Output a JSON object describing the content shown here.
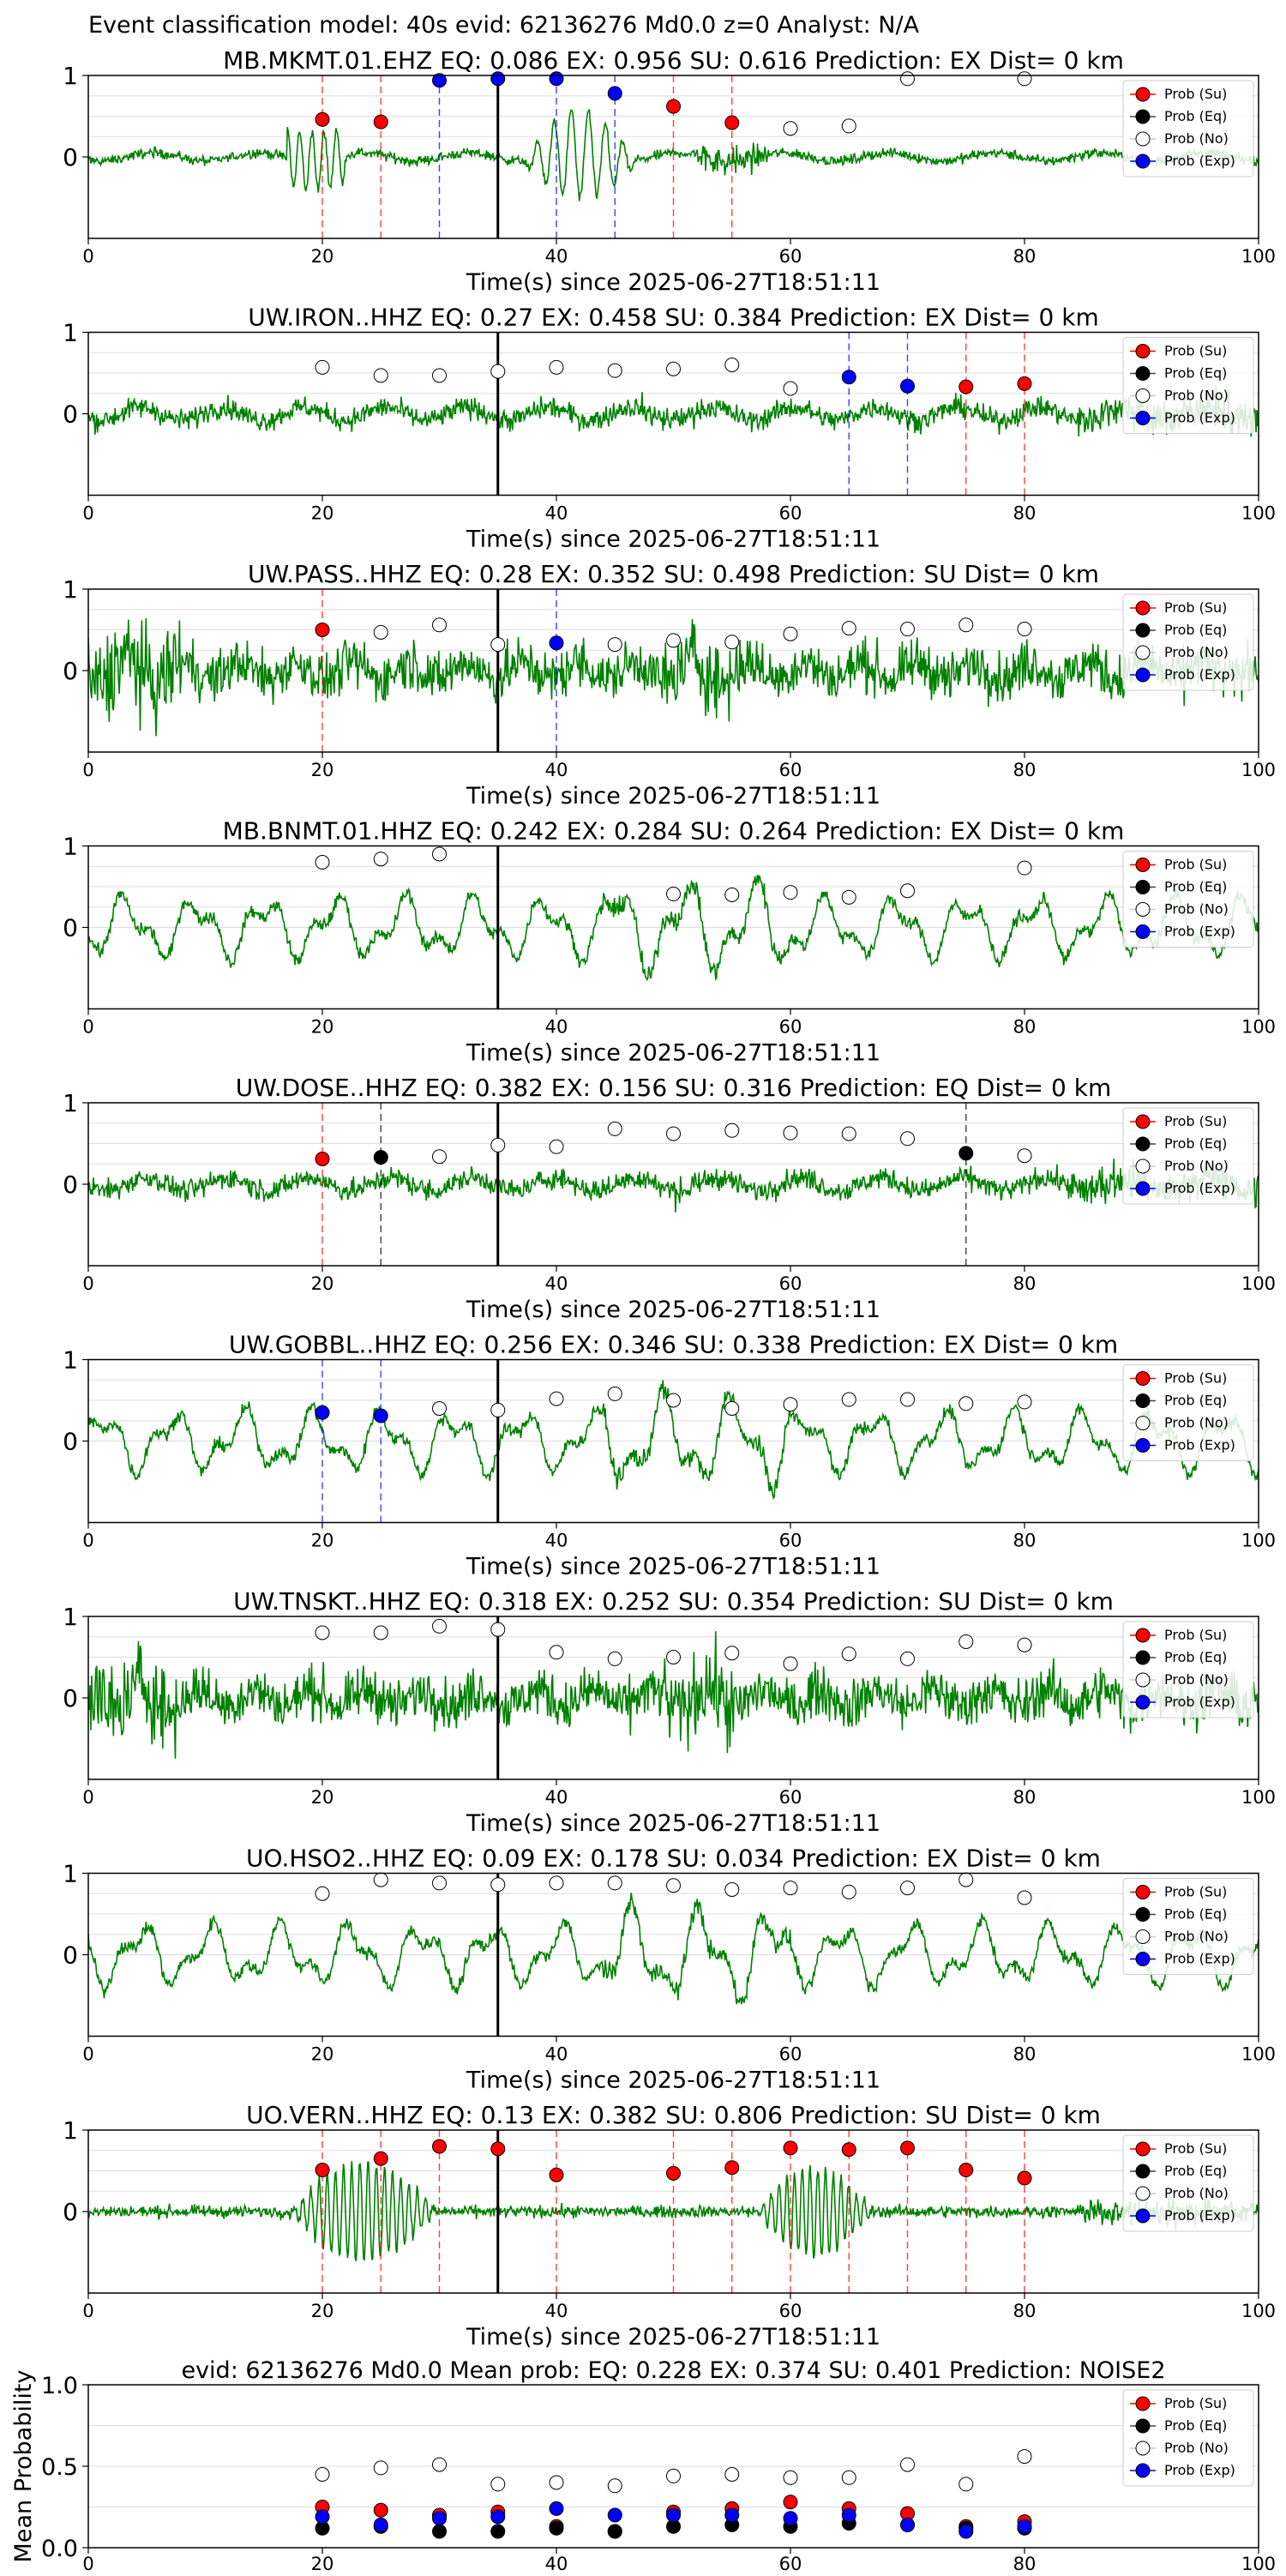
{
  "figure_title": "Event classification model: 40s evid: 62136276 Md0.0 z=0 Analyst: N/A",
  "colors": {
    "trace": "#008000",
    "su": "#ff0000",
    "eq": "#000000",
    "no": "#ffffff",
    "exp": "#0000ff",
    "grid": "#dddddd",
    "pick": "#000000"
  },
  "legend_labels": [
    "Prob (Su)",
    "Prob (Eq)",
    "Prob (No)",
    "Prob (Exp)"
  ],
  "chart_data": [
    {
      "type": "scatter",
      "title": "MB.MKMT.01.EHZ   EQ: 0.086  EX: 0.956  SU: 0.616   Prediction: EX    Dist= 0 km",
      "xlabel": "Time(s) since 2025-06-27T18:51:11",
      "ylabel": "",
      "xlim": [
        0,
        100
      ],
      "ylim": [
        -1,
        1
      ],
      "xticks": [
        "0",
        "20",
        "40",
        "60",
        "80",
        "100"
      ],
      "yticks": [
        "0",
        "1"
      ],
      "pick_time": 35,
      "trace_style": "spiky",
      "points": [
        {
          "x": 20,
          "y": 0.46,
          "cls": "su"
        },
        {
          "x": 25,
          "y": 0.43,
          "cls": "su"
        },
        {
          "x": 30,
          "y": 0.94,
          "cls": "exp"
        },
        {
          "x": 35,
          "y": 0.96,
          "cls": "exp"
        },
        {
          "x": 40,
          "y": 0.96,
          "cls": "exp"
        },
        {
          "x": 45,
          "y": 0.78,
          "cls": "exp"
        },
        {
          "x": 50,
          "y": 0.62,
          "cls": "su"
        },
        {
          "x": 55,
          "y": 0.42,
          "cls": "su"
        },
        {
          "x": 60,
          "y": 0.35,
          "cls": "no"
        },
        {
          "x": 65,
          "y": 0.38,
          "cls": "no"
        },
        {
          "x": 70,
          "y": 0.96,
          "cls": "no"
        },
        {
          "x": 80,
          "y": 0.96,
          "cls": "no"
        }
      ]
    },
    {
      "type": "scatter",
      "title": "UW.IRON..HHZ   EQ: 0.27  EX: 0.458  SU: 0.384   Prediction: EX    Dist= 0 km",
      "xlabel": "Time(s) since 2025-06-27T18:51:11",
      "ylabel": "",
      "xlim": [
        0,
        100
      ],
      "ylim": [
        -1,
        1
      ],
      "xticks": [
        "0",
        "20",
        "40",
        "60",
        "80",
        "100"
      ],
      "yticks": [
        "0",
        "1"
      ],
      "pick_time": 35,
      "trace_style": "noise",
      "points": [
        {
          "x": 20,
          "y": 0.57,
          "cls": "no"
        },
        {
          "x": 25,
          "y": 0.47,
          "cls": "no"
        },
        {
          "x": 30,
          "y": 0.47,
          "cls": "no"
        },
        {
          "x": 35,
          "y": 0.52,
          "cls": "no"
        },
        {
          "x": 40,
          "y": 0.57,
          "cls": "no"
        },
        {
          "x": 45,
          "y": 0.53,
          "cls": "no"
        },
        {
          "x": 50,
          "y": 0.55,
          "cls": "no"
        },
        {
          "x": 55,
          "y": 0.6,
          "cls": "no"
        },
        {
          "x": 60,
          "y": 0.31,
          "cls": "no"
        },
        {
          "x": 65,
          "y": 0.45,
          "cls": "exp"
        },
        {
          "x": 70,
          "y": 0.34,
          "cls": "exp"
        },
        {
          "x": 75,
          "y": 0.33,
          "cls": "su"
        },
        {
          "x": 80,
          "y": 0.37,
          "cls": "su"
        }
      ]
    },
    {
      "type": "scatter",
      "title": "UW.PASS..HHZ   EQ: 0.28  EX: 0.352  SU: 0.498   Prediction: SU    Dist= 0 km",
      "xlabel": "Time(s) since 2025-06-27T18:51:11",
      "ylabel": "",
      "xlim": [
        0,
        100
      ],
      "ylim": [
        -1,
        1
      ],
      "xticks": [
        "0",
        "20",
        "40",
        "60",
        "80",
        "100"
      ],
      "yticks": [
        "0",
        "1"
      ],
      "pick_time": 35,
      "trace_style": "loud",
      "points": [
        {
          "x": 20,
          "y": 0.5,
          "cls": "su"
        },
        {
          "x": 25,
          "y": 0.47,
          "cls": "no"
        },
        {
          "x": 30,
          "y": 0.56,
          "cls": "no"
        },
        {
          "x": 35,
          "y": 0.32,
          "cls": "no"
        },
        {
          "x": 40,
          "y": 0.34,
          "cls": "exp"
        },
        {
          "x": 45,
          "y": 0.32,
          "cls": "no"
        },
        {
          "x": 50,
          "y": 0.37,
          "cls": "no"
        },
        {
          "x": 55,
          "y": 0.35,
          "cls": "no"
        },
        {
          "x": 60,
          "y": 0.45,
          "cls": "no"
        },
        {
          "x": 65,
          "y": 0.52,
          "cls": "no"
        },
        {
          "x": 70,
          "y": 0.51,
          "cls": "no"
        },
        {
          "x": 75,
          "y": 0.56,
          "cls": "no"
        },
        {
          "x": 80,
          "y": 0.51,
          "cls": "no"
        }
      ]
    },
    {
      "type": "scatter",
      "title": "MB.BNMT.01.HHZ   EQ: 0.242  EX: 0.284  SU: 0.264   Prediction: EX    Dist= 0 km",
      "xlabel": "Time(s) since 2025-06-27T18:51:11",
      "ylabel": "",
      "xlim": [
        0,
        100
      ],
      "ylim": [
        -1,
        1
      ],
      "xticks": [
        "0",
        "20",
        "40",
        "60",
        "80",
        "100"
      ],
      "yticks": [
        "0",
        "1"
      ],
      "pick_time": 35,
      "trace_style": "wavy",
      "points": [
        {
          "x": 20,
          "y": 0.8,
          "cls": "no"
        },
        {
          "x": 25,
          "y": 0.84,
          "cls": "no"
        },
        {
          "x": 30,
          "y": 0.9,
          "cls": "no"
        },
        {
          "x": 50,
          "y": 0.41,
          "cls": "no"
        },
        {
          "x": 55,
          "y": 0.4,
          "cls": "no"
        },
        {
          "x": 60,
          "y": 0.43,
          "cls": "no"
        },
        {
          "x": 65,
          "y": 0.37,
          "cls": "no"
        },
        {
          "x": 70,
          "y": 0.45,
          "cls": "no"
        },
        {
          "x": 80,
          "y": 0.73,
          "cls": "no"
        }
      ]
    },
    {
      "type": "scatter",
      "title": "UW.DOSE..HHZ   EQ: 0.382  EX: 0.156  SU: 0.316   Prediction: EQ    Dist= 0 km",
      "xlabel": "Time(s) since 2025-06-27T18:51:11",
      "ylabel": "",
      "xlim": [
        0,
        100
      ],
      "ylim": [
        -1,
        1
      ],
      "xticks": [
        "0",
        "20",
        "40",
        "60",
        "80",
        "100"
      ],
      "yticks": [
        "0",
        "1"
      ],
      "pick_time": 35,
      "trace_style": "noise",
      "points": [
        {
          "x": 20,
          "y": 0.31,
          "cls": "su"
        },
        {
          "x": 25,
          "y": 0.33,
          "cls": "eq"
        },
        {
          "x": 30,
          "y": 0.34,
          "cls": "no"
        },
        {
          "x": 35,
          "y": 0.48,
          "cls": "no"
        },
        {
          "x": 40,
          "y": 0.46,
          "cls": "no"
        },
        {
          "x": 45,
          "y": 0.68,
          "cls": "no"
        },
        {
          "x": 50,
          "y": 0.62,
          "cls": "no"
        },
        {
          "x": 55,
          "y": 0.66,
          "cls": "no"
        },
        {
          "x": 60,
          "y": 0.63,
          "cls": "no"
        },
        {
          "x": 65,
          "y": 0.62,
          "cls": "no"
        },
        {
          "x": 70,
          "y": 0.56,
          "cls": "no"
        },
        {
          "x": 75,
          "y": 0.38,
          "cls": "eq"
        },
        {
          "x": 80,
          "y": 0.35,
          "cls": "no"
        }
      ]
    },
    {
      "type": "scatter",
      "title": "UW.GOBBL..HHZ   EQ: 0.256  EX: 0.346  SU: 0.338   Prediction: EX    Dist= 0 km",
      "xlabel": "Time(s) since 2025-06-27T18:51:11",
      "ylabel": "",
      "xlim": [
        0,
        100
      ],
      "ylim": [
        -1,
        1
      ],
      "xticks": [
        "0",
        "20",
        "40",
        "60",
        "80",
        "100"
      ],
      "yticks": [
        "0",
        "1"
      ],
      "pick_time": 35,
      "trace_style": "wavy",
      "points": [
        {
          "x": 20,
          "y": 0.35,
          "cls": "exp"
        },
        {
          "x": 25,
          "y": 0.31,
          "cls": "exp"
        },
        {
          "x": 30,
          "y": 0.4,
          "cls": "no"
        },
        {
          "x": 35,
          "y": 0.38,
          "cls": "no"
        },
        {
          "x": 40,
          "y": 0.52,
          "cls": "no"
        },
        {
          "x": 45,
          "y": 0.58,
          "cls": "no"
        },
        {
          "x": 50,
          "y": 0.5,
          "cls": "no"
        },
        {
          "x": 55,
          "y": 0.4,
          "cls": "no"
        },
        {
          "x": 60,
          "y": 0.45,
          "cls": "no"
        },
        {
          "x": 65,
          "y": 0.51,
          "cls": "no"
        },
        {
          "x": 70,
          "y": 0.51,
          "cls": "no"
        },
        {
          "x": 75,
          "y": 0.46,
          "cls": "no"
        },
        {
          "x": 80,
          "y": 0.48,
          "cls": "no"
        }
      ]
    },
    {
      "type": "scatter",
      "title": "UW.TNSKT..HHZ   EQ: 0.318  EX: 0.252  SU: 0.354   Prediction: SU    Dist= 0 km",
      "xlabel": "Time(s) since 2025-06-27T18:51:11",
      "ylabel": "",
      "xlim": [
        0,
        100
      ],
      "ylim": [
        -1,
        1
      ],
      "xticks": [
        "0",
        "20",
        "40",
        "60",
        "80",
        "100"
      ],
      "yticks": [
        "0",
        "1"
      ],
      "pick_time": 35,
      "trace_style": "loud",
      "points": [
        {
          "x": 20,
          "y": 0.8,
          "cls": "no"
        },
        {
          "x": 25,
          "y": 0.8,
          "cls": "no"
        },
        {
          "x": 30,
          "y": 0.88,
          "cls": "no"
        },
        {
          "x": 35,
          "y": 0.84,
          "cls": "no"
        },
        {
          "x": 40,
          "y": 0.56,
          "cls": "no"
        },
        {
          "x": 45,
          "y": 0.48,
          "cls": "no"
        },
        {
          "x": 50,
          "y": 0.5,
          "cls": "no"
        },
        {
          "x": 55,
          "y": 0.55,
          "cls": "no"
        },
        {
          "x": 60,
          "y": 0.42,
          "cls": "no"
        },
        {
          "x": 65,
          "y": 0.54,
          "cls": "no"
        },
        {
          "x": 70,
          "y": 0.48,
          "cls": "no"
        },
        {
          "x": 75,
          "y": 0.69,
          "cls": "no"
        },
        {
          "x": 80,
          "y": 0.65,
          "cls": "no"
        }
      ]
    },
    {
      "type": "scatter",
      "title": "UO.HSO2..HHZ   EQ: 0.09  EX: 0.178  SU: 0.034   Prediction: EX    Dist= 0 km",
      "xlabel": "Time(s) since 2025-06-27T18:51:11",
      "ylabel": "",
      "xlim": [
        0,
        100
      ],
      "ylim": [
        -1,
        1
      ],
      "xticks": [
        "0",
        "20",
        "40",
        "60",
        "80",
        "100"
      ],
      "yticks": [
        "0",
        "1"
      ],
      "pick_time": 35,
      "trace_style": "wavy",
      "points": [
        {
          "x": 20,
          "y": 0.75,
          "cls": "no"
        },
        {
          "x": 25,
          "y": 0.92,
          "cls": "no"
        },
        {
          "x": 30,
          "y": 0.88,
          "cls": "no"
        },
        {
          "x": 35,
          "y": 0.86,
          "cls": "no"
        },
        {
          "x": 40,
          "y": 0.88,
          "cls": "no"
        },
        {
          "x": 45,
          "y": 0.88,
          "cls": "no"
        },
        {
          "x": 50,
          "y": 0.85,
          "cls": "no"
        },
        {
          "x": 55,
          "y": 0.8,
          "cls": "no"
        },
        {
          "x": 60,
          "y": 0.82,
          "cls": "no"
        },
        {
          "x": 65,
          "y": 0.77,
          "cls": "no"
        },
        {
          "x": 70,
          "y": 0.82,
          "cls": "no"
        },
        {
          "x": 75,
          "y": 0.92,
          "cls": "no"
        },
        {
          "x": 80,
          "y": 0.7,
          "cls": "no"
        }
      ]
    },
    {
      "type": "scatter",
      "title": "UO.VERN..HHZ   EQ: 0.13  EX: 0.382  SU: 0.806   Prediction: SU    Dist= 0 km",
      "xlabel": "Time(s) since 2025-06-27T18:51:11",
      "ylabel": "",
      "xlim": [
        0,
        100
      ],
      "ylim": [
        -1,
        1
      ],
      "xticks": [
        "0",
        "20",
        "40",
        "60",
        "80",
        "100"
      ],
      "yticks": [
        "0",
        "1"
      ],
      "pick_time": 35,
      "trace_style": "bursty",
      "points": [
        {
          "x": 20,
          "y": 0.51,
          "cls": "su"
        },
        {
          "x": 25,
          "y": 0.65,
          "cls": "su"
        },
        {
          "x": 30,
          "y": 0.8,
          "cls": "su"
        },
        {
          "x": 35,
          "y": 0.77,
          "cls": "su"
        },
        {
          "x": 40,
          "y": 0.45,
          "cls": "su"
        },
        {
          "x": 50,
          "y": 0.47,
          "cls": "su"
        },
        {
          "x": 55,
          "y": 0.54,
          "cls": "su"
        },
        {
          "x": 60,
          "y": 0.78,
          "cls": "su"
        },
        {
          "x": 65,
          "y": 0.76,
          "cls": "su"
        },
        {
          "x": 70,
          "y": 0.78,
          "cls": "su"
        },
        {
          "x": 75,
          "y": 0.51,
          "cls": "su"
        },
        {
          "x": 80,
          "y": 0.41,
          "cls": "su"
        }
      ]
    },
    {
      "type": "scatter",
      "title": "evid: 62136276  Md0.0   Mean prob:    EQ: 0.228  EX: 0.374  SU: 0.401   Prediction: NOISE2",
      "xlabel": "",
      "ylabel": "Mean Probability",
      "xlim": [
        0,
        100
      ],
      "ylim": [
        0,
        1
      ],
      "xticks": [
        "0",
        "20",
        "40",
        "60",
        "80",
        "100"
      ],
      "yticks": [
        "0.0",
        "0.5",
        "1.0"
      ],
      "series": [
        {
          "name": "Prob (Su)",
          "cls": "su",
          "x": [
            20,
            25,
            30,
            35,
            40,
            45,
            50,
            55,
            60,
            65,
            70,
            75,
            80
          ],
          "y": [
            0.25,
            0.23,
            0.2,
            0.22,
            0.13,
            0.1,
            0.22,
            0.24,
            0.28,
            0.24,
            0.21,
            0.13,
            0.16
          ]
        },
        {
          "name": "Prob (Eq)",
          "cls": "eq",
          "x": [
            20,
            25,
            30,
            35,
            40,
            45,
            50,
            55,
            60,
            65,
            70,
            75,
            80
          ],
          "y": [
            0.12,
            0.13,
            0.1,
            0.1,
            0.12,
            0.1,
            0.13,
            0.14,
            0.13,
            0.15,
            0.14,
            0.12,
            0.12
          ]
        },
        {
          "name": "Prob (No)",
          "cls": "no",
          "x": [
            20,
            25,
            30,
            35,
            40,
            45,
            50,
            55,
            60,
            65,
            70,
            75,
            80
          ],
          "y": [
            0.45,
            0.49,
            0.51,
            0.39,
            0.4,
            0.38,
            0.44,
            0.45,
            0.43,
            0.43,
            0.51,
            0.39,
            0.56
          ]
        },
        {
          "name": "Prob (Exp)",
          "cls": "exp",
          "x": [
            20,
            25,
            30,
            35,
            40,
            45,
            50,
            55,
            60,
            65,
            70,
            75,
            80
          ],
          "y": [
            0.19,
            0.14,
            0.18,
            0.19,
            0.24,
            0.2,
            0.2,
            0.2,
            0.18,
            0.2,
            0.14,
            0.1,
            0.13
          ]
        }
      ]
    }
  ]
}
